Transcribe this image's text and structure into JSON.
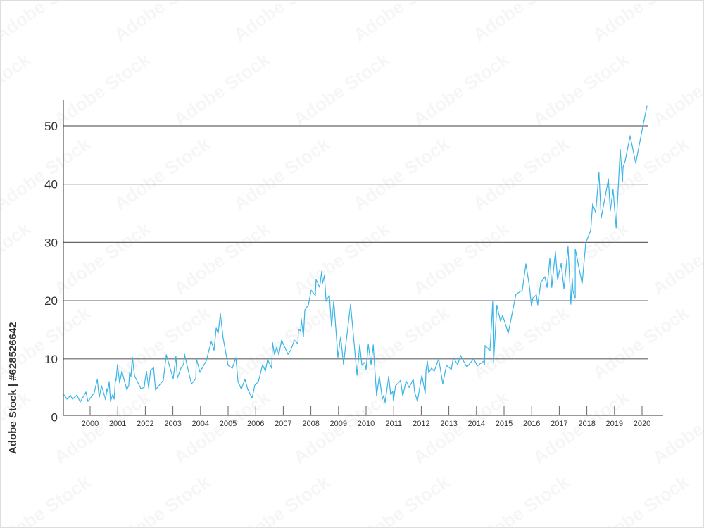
{
  "watermark": {
    "text": "Adobe Stock",
    "side_id": "Adobe Stock | #628526642"
  },
  "colors": {
    "line": "#3ab4e6",
    "grid": "#666666",
    "axis": "#333333",
    "text": "#333333"
  },
  "chart_data": {
    "type": "line",
    "title": "",
    "xlabel": "",
    "ylabel": "",
    "xlim": [
      1999.03,
      2020.75
    ],
    "ylim": [
      0,
      54
    ],
    "y_ticks": [
      0,
      10,
      20,
      30,
      40,
      50
    ],
    "x_ticks": [
      2000,
      2001,
      2002,
      2003,
      2004,
      2005,
      2006,
      2007,
      2008,
      2009,
      2010,
      2011,
      2012,
      2013,
      2014,
      2015,
      2016,
      2017,
      2018,
      2019,
      2020
    ],
    "grid": "horizontal",
    "legend": "none",
    "series": [
      {
        "points": [
          [
            1999.06,
            3.8
          ],
          [
            1999.16,
            3.1
          ],
          [
            1999.29,
            3.7
          ],
          [
            1999.36,
            3.1
          ],
          [
            1999.52,
            3.8
          ],
          [
            1999.64,
            2.6
          ],
          [
            1999.85,
            4.3
          ],
          [
            1999.92,
            2.7
          ],
          [
            2000.15,
            4.2
          ],
          [
            2000.26,
            6.5
          ],
          [
            2000.33,
            3.4
          ],
          [
            2000.41,
            5.4
          ],
          [
            2000.56,
            3.0
          ],
          [
            2000.61,
            4.9
          ],
          [
            2000.64,
            4.3
          ],
          [
            2000.69,
            6.1
          ],
          [
            2000.74,
            2.7
          ],
          [
            2000.82,
            3.9
          ],
          [
            2000.87,
            3.1
          ],
          [
            2000.92,
            6.6
          ],
          [
            2000.94,
            6.3
          ],
          [
            2000.99,
            9.0
          ],
          [
            2001.07,
            5.9
          ],
          [
            2001.15,
            7.9
          ],
          [
            2001.33,
            4.7
          ],
          [
            2001.4,
            5.4
          ],
          [
            2001.43,
            7.7
          ],
          [
            2001.48,
            7.0
          ],
          [
            2001.53,
            10.3
          ],
          [
            2001.61,
            7.1
          ],
          [
            2001.84,
            4.9
          ],
          [
            2001.96,
            5.1
          ],
          [
            2001.99,
            6.3
          ],
          [
            2002.04,
            7.9
          ],
          [
            2002.12,
            5.0
          ],
          [
            2002.19,
            8.0
          ],
          [
            2002.3,
            8.5
          ],
          [
            2002.37,
            4.7
          ],
          [
            2002.65,
            6.3
          ],
          [
            2002.76,
            10.7
          ],
          [
            2003.01,
            6.6
          ],
          [
            2003.11,
            10.5
          ],
          [
            2003.16,
            6.7
          ],
          [
            2003.29,
            8.4
          ],
          [
            2003.39,
            9.1
          ],
          [
            2003.42,
            10.8
          ],
          [
            2003.67,
            5.7
          ],
          [
            2003.83,
            6.6
          ],
          [
            2003.85,
            10.1
          ],
          [
            2003.98,
            7.7
          ],
          [
            2004.21,
            9.7
          ],
          [
            2004.39,
            13.0
          ],
          [
            2004.49,
            11.5
          ],
          [
            2004.57,
            15.3
          ],
          [
            2004.64,
            14.4
          ],
          [
            2004.72,
            17.8
          ],
          [
            2004.82,
            13.6
          ],
          [
            2005.0,
            8.9
          ],
          [
            2005.15,
            8.4
          ],
          [
            2005.28,
            10.2
          ],
          [
            2005.36,
            6.1
          ],
          [
            2005.48,
            4.8
          ],
          [
            2005.61,
            6.5
          ],
          [
            2005.71,
            4.8
          ],
          [
            2005.87,
            3.3
          ],
          [
            2005.97,
            5.5
          ],
          [
            2006.1,
            6.1
          ],
          [
            2006.25,
            9.0
          ],
          [
            2006.35,
            7.9
          ],
          [
            2006.43,
            9.9
          ],
          [
            2006.58,
            8.4
          ],
          [
            2006.61,
            12.8
          ],
          [
            2006.68,
            10.8
          ],
          [
            2006.76,
            12.0
          ],
          [
            2006.84,
            10.7
          ],
          [
            2006.94,
            13.2
          ],
          [
            2007.17,
            10.8
          ],
          [
            2007.27,
            11.5
          ],
          [
            2007.4,
            13.2
          ],
          [
            2007.53,
            12.6
          ],
          [
            2007.55,
            15.1
          ],
          [
            2007.63,
            14.8
          ],
          [
            2007.65,
            16.9
          ],
          [
            2007.73,
            13.8
          ],
          [
            2007.78,
            18.4
          ],
          [
            2007.91,
            19.3
          ],
          [
            2008.01,
            21.8
          ],
          [
            2008.16,
            20.9
          ],
          [
            2008.19,
            23.6
          ],
          [
            2008.32,
            22.3
          ],
          [
            2008.39,
            25.0
          ],
          [
            2008.42,
            23.0
          ],
          [
            2008.49,
            24.3
          ],
          [
            2008.55,
            19.9
          ],
          [
            2008.67,
            20.9
          ],
          [
            2008.75,
            15.5
          ],
          [
            2008.83,
            20.0
          ],
          [
            2008.98,
            10.3
          ],
          [
            2009.08,
            13.8
          ],
          [
            2009.18,
            9.1
          ],
          [
            2009.44,
            19.4
          ],
          [
            2009.67,
            7.2
          ],
          [
            2009.77,
            12.4
          ],
          [
            2009.85,
            8.9
          ],
          [
            2009.95,
            9.4
          ],
          [
            2010.0,
            8.2
          ],
          [
            2010.08,
            12.5
          ],
          [
            2010.18,
            9.0
          ],
          [
            2010.26,
            12.4
          ],
          [
            2010.38,
            3.7
          ],
          [
            2010.48,
            7.0
          ],
          [
            2010.59,
            3.1
          ],
          [
            2010.64,
            3.7
          ],
          [
            2010.69,
            2.5
          ],
          [
            2010.82,
            7.0
          ],
          [
            2010.89,
            3.9
          ],
          [
            2010.97,
            4.4
          ],
          [
            2010.99,
            2.8
          ],
          [
            2011.07,
            5.4
          ],
          [
            2011.25,
            6.3
          ],
          [
            2011.33,
            3.6
          ],
          [
            2011.45,
            6.2
          ],
          [
            2011.56,
            5.1
          ],
          [
            2011.71,
            6.5
          ],
          [
            2011.76,
            4.3
          ],
          [
            2011.86,
            2.7
          ],
          [
            2012.02,
            7.2
          ],
          [
            2012.14,
            4.1
          ],
          [
            2012.17,
            8.0
          ],
          [
            2012.22,
            9.6
          ],
          [
            2012.27,
            7.6
          ],
          [
            2012.37,
            8.4
          ],
          [
            2012.47,
            7.9
          ],
          [
            2012.63,
            10.0
          ],
          [
            2012.78,
            5.7
          ],
          [
            2012.91,
            8.9
          ],
          [
            2013.09,
            8.2
          ],
          [
            2013.16,
            10.2
          ],
          [
            2013.32,
            9.0
          ],
          [
            2013.42,
            10.6
          ],
          [
            2013.65,
            8.6
          ],
          [
            2013.9,
            10.0
          ],
          [
            2014.03,
            8.8
          ],
          [
            2014.26,
            9.6
          ],
          [
            2014.29,
            9.1
          ],
          [
            2014.31,
            12.3
          ],
          [
            2014.49,
            11.4
          ],
          [
            2014.59,
            19.8
          ],
          [
            2014.62,
            9.4
          ],
          [
            2014.74,
            19.2
          ],
          [
            2014.87,
            16.5
          ],
          [
            2014.95,
            17.5
          ],
          [
            2015.15,
            14.4
          ],
          [
            2015.43,
            21.1
          ],
          [
            2015.66,
            21.8
          ],
          [
            2015.79,
            26.3
          ],
          [
            2015.92,
            22.4
          ],
          [
            2015.99,
            19.2
          ],
          [
            2016.05,
            20.5
          ],
          [
            2016.17,
            21.0
          ],
          [
            2016.22,
            19.3
          ],
          [
            2016.33,
            23.1
          ],
          [
            2016.48,
            24.1
          ],
          [
            2016.56,
            22.3
          ],
          [
            2016.66,
            27.3
          ],
          [
            2016.73,
            22.3
          ],
          [
            2016.86,
            28.4
          ],
          [
            2016.94,
            23.6
          ],
          [
            2017.07,
            26.4
          ],
          [
            2017.17,
            22.0
          ],
          [
            2017.32,
            29.3
          ],
          [
            2017.42,
            19.4
          ],
          [
            2017.47,
            23.8
          ],
          [
            2017.5,
            21.6
          ],
          [
            2017.58,
            20.4
          ],
          [
            2017.58,
            28.9
          ],
          [
            2017.83,
            22.9
          ],
          [
            2017.96,
            29.9
          ],
          [
            2018.14,
            32.1
          ],
          [
            2018.21,
            36.6
          ],
          [
            2018.32,
            35.1
          ],
          [
            2018.44,
            42.0
          ],
          [
            2018.52,
            34.2
          ],
          [
            2018.78,
            40.9
          ],
          [
            2018.85,
            35.4
          ],
          [
            2018.95,
            39.1
          ],
          [
            2019.06,
            32.5
          ],
          [
            2019.21,
            46.0
          ],
          [
            2019.29,
            40.4
          ],
          [
            2019.31,
            42.9
          ],
          [
            2019.39,
            44.1
          ],
          [
            2019.57,
            48.3
          ],
          [
            2019.77,
            43.6
          ],
          [
            2020.03,
            50.0
          ],
          [
            2020.18,
            53.5
          ]
        ]
      }
    ]
  }
}
